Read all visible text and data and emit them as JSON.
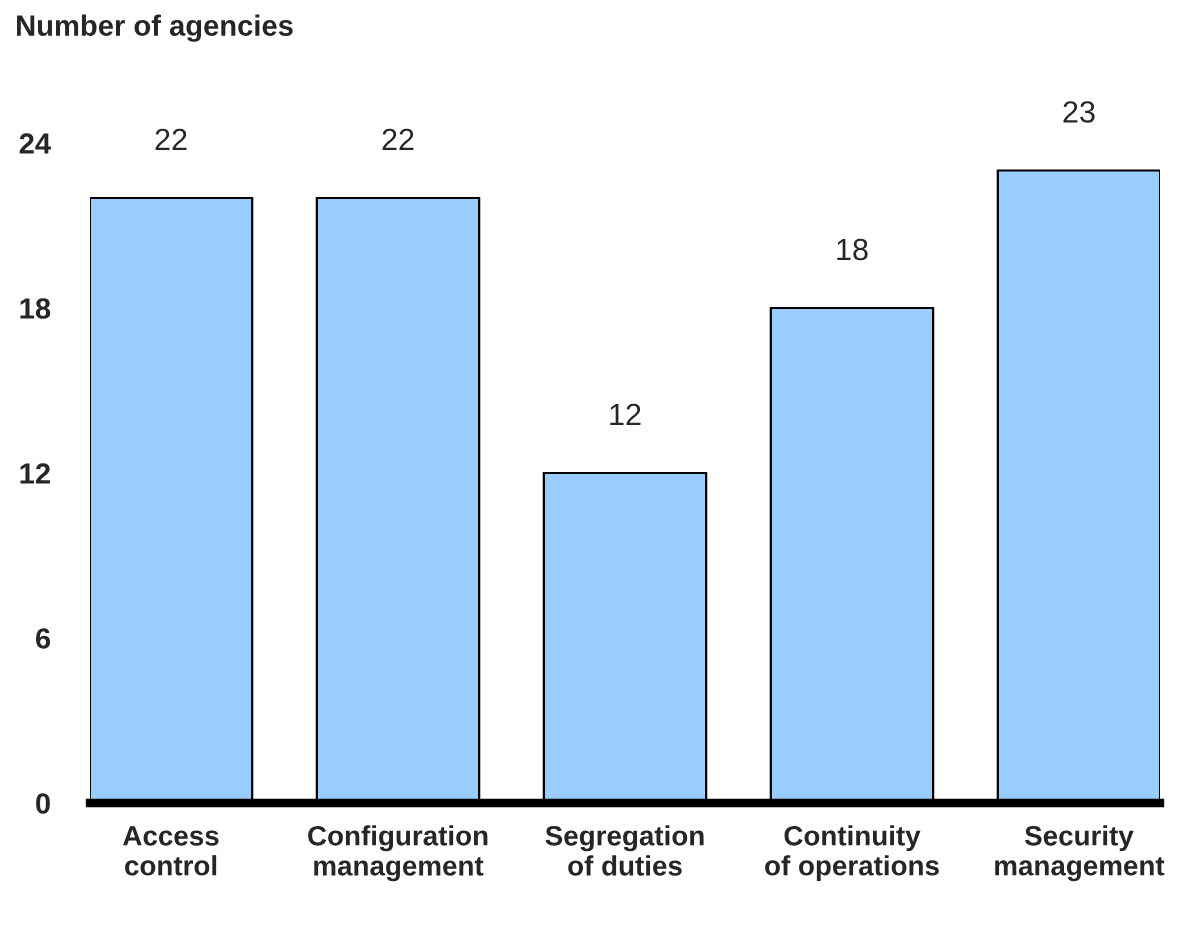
{
  "chart_data": {
    "type": "bar",
    "ylabel": "Number of agencies",
    "categories": [
      "Access\ncontrol",
      "Configuration\nmanagement",
      "Segregation\nof duties",
      "Continuity\nof operations",
      "Security\nmanagement"
    ],
    "values": [
      22,
      22,
      12,
      18,
      23
    ],
    "color": "#99ccff",
    "ylim": [
      0,
      24
    ],
    "yticks": [
      0,
      6,
      12,
      18,
      24
    ],
    "data_labels": true
  }
}
